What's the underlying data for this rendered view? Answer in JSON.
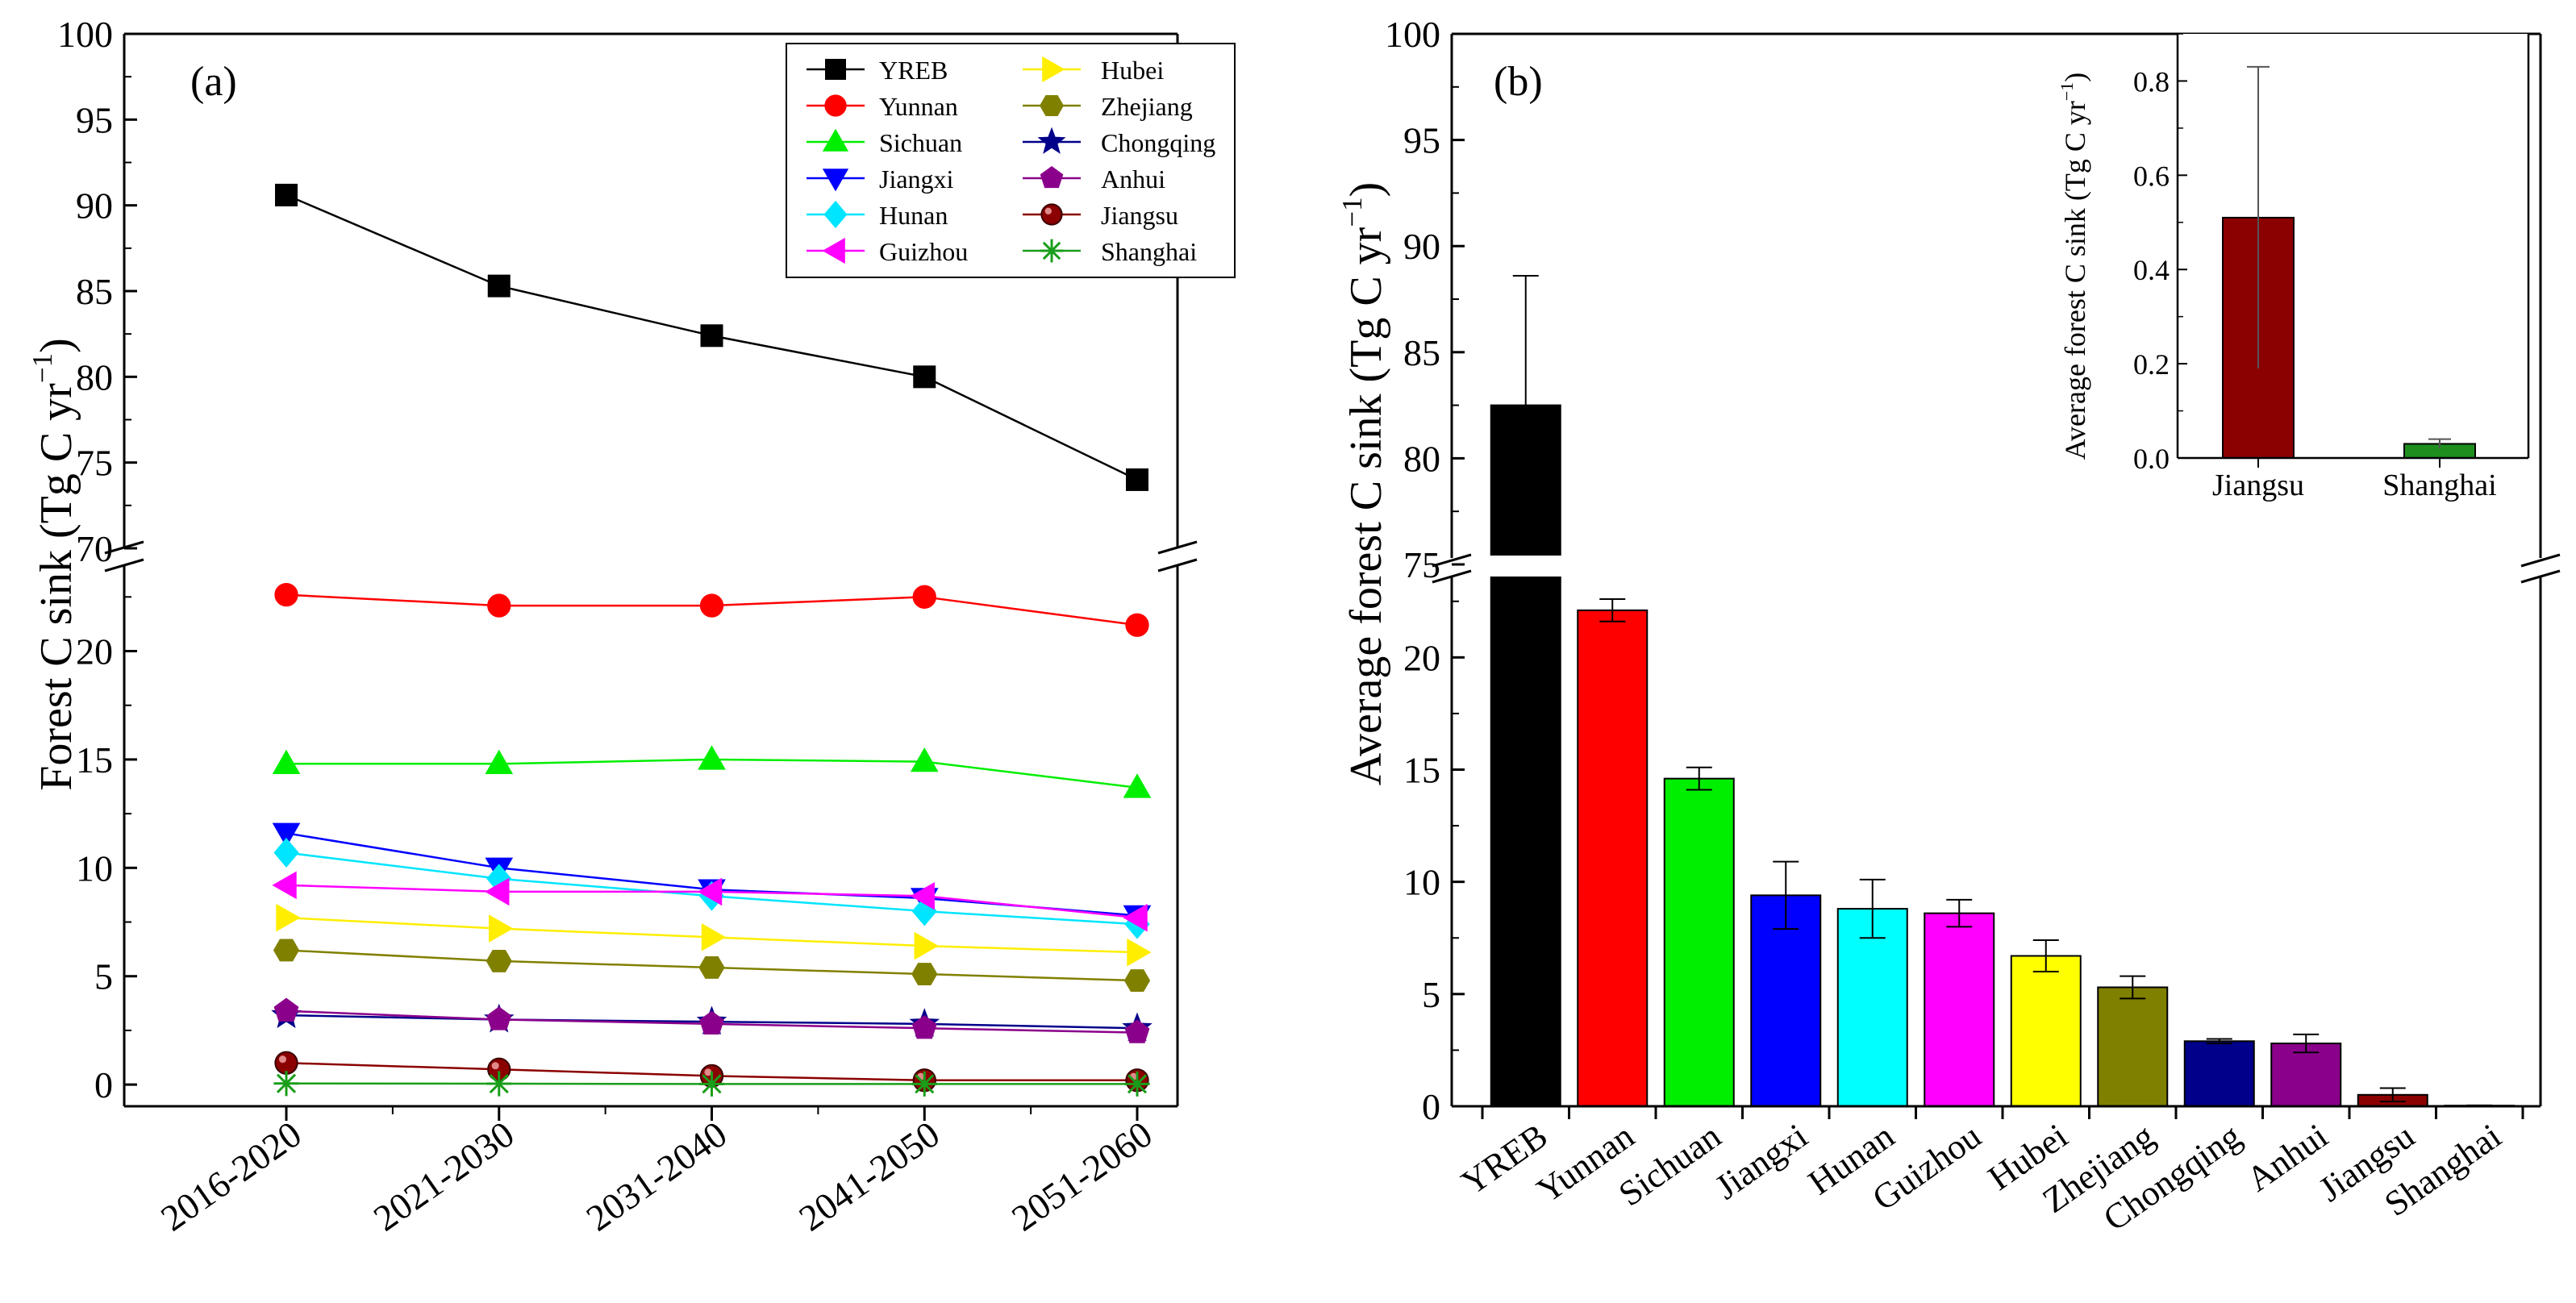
{
  "chart_data": [
    {
      "panel": "(a)",
      "type": "line",
      "ylabel": "Forest C sink (Tg C yr",
      "ylabel_sup": "−1",
      "ylabel_close": ")",
      "x": [
        "2016-2020",
        "2021-2030",
        "2031-2040",
        "2041-2050",
        "2051-2060"
      ],
      "y_lower_range": [
        -1,
        24
      ],
      "y_lower_ticks": [
        "0",
        "5",
        "10",
        "15",
        "20"
      ],
      "y_upper_range": [
        70,
        100
      ],
      "y_upper_ticks": [
        "70",
        "75",
        "80",
        "85",
        "90",
        "95",
        "100"
      ],
      "grid": false,
      "legend_position": "top-right",
      "series": [
        {
          "name": "YREB",
          "color": "#000000",
          "marker": "square",
          "values": [
            90.6,
            85.3,
            82.4,
            80.0,
            74.0
          ]
        },
        {
          "name": "Yunnan",
          "color": "#ff0000",
          "marker": "circle",
          "values": [
            22.6,
            22.1,
            22.1,
            22.5,
            21.2
          ]
        },
        {
          "name": "Sichuan",
          "color": "#00ee00",
          "marker": "triangle-up",
          "values": [
            14.8,
            14.8,
            15.0,
            14.9,
            13.7
          ]
        },
        {
          "name": "Jiangxi",
          "color": "#0000ff",
          "marker": "triangle-down",
          "values": [
            11.6,
            10.0,
            9.0,
            8.6,
            7.8
          ]
        },
        {
          "name": "Hunan",
          "color": "#00e5ff",
          "marker": "diamond",
          "values": [
            10.7,
            9.5,
            8.7,
            8.0,
            7.4
          ]
        },
        {
          "name": "Guizhou",
          "color": "#ff00ff",
          "marker": "triangle-left",
          "values": [
            9.2,
            8.9,
            8.9,
            8.7,
            7.7
          ]
        },
        {
          "name": "Hubei",
          "color": "#ffee00",
          "marker": "triangle-right",
          "values": [
            7.7,
            7.2,
            6.8,
            6.4,
            6.1
          ]
        },
        {
          "name": "Zhejiang",
          "color": "#808000",
          "marker": "hexagon",
          "values": [
            6.2,
            5.7,
            5.4,
            5.1,
            4.8
          ]
        },
        {
          "name": "Chongqing",
          "color": "#00008b",
          "marker": "star",
          "values": [
            3.2,
            3.0,
            2.9,
            2.8,
            2.6
          ]
        },
        {
          "name": "Anhui",
          "color": "#8b008b",
          "marker": "pentagon",
          "values": [
            3.4,
            3.0,
            2.8,
            2.6,
            2.4
          ]
        },
        {
          "name": "Jiangsu",
          "color": "#8b0000",
          "marker": "sphere",
          "values": [
            1.0,
            0.7,
            0.4,
            0.2,
            0.2
          ]
        },
        {
          "name": "Shanghai",
          "color": "#1a9e1a",
          "marker": "asterisk",
          "values": [
            0.05,
            0.04,
            0.03,
            0.03,
            0.03
          ]
        }
      ]
    },
    {
      "panel": "(b)",
      "type": "bar",
      "ylabel": "Average forest C sink (Tg C yr",
      "ylabel_sup": "−1",
      "ylabel_close": ")",
      "categories": [
        "YREB",
        "Yunnan",
        "Sichuan",
        "Jiangxi",
        "Hunan",
        "Guizhou",
        "Hubei",
        "Zhejiang",
        "Chongqing",
        "Anhui",
        "Jiangsu",
        "Shanghai"
      ],
      "values": [
        82.5,
        22.1,
        14.6,
        9.4,
        8.8,
        8.6,
        6.7,
        5.3,
        2.9,
        2.8,
        0.51,
        0.03
      ],
      "errors": [
        6.1,
        0.5,
        0.5,
        1.5,
        1.3,
        0.6,
        0.7,
        0.5,
        0.1,
        0.4,
        0.3,
        0.01
      ],
      "colors": [
        "#000000",
        "#ff0000",
        "#00ee00",
        "#0000ff",
        "#00ffff",
        "#ff00ff",
        "#ffff00",
        "#808000",
        "#00008b",
        "#8b008b",
        "#8b0000",
        "#1e8f1e"
      ],
      "y_lower_range": [
        0,
        24
      ],
      "y_lower_ticks": [
        "0",
        "5",
        "10",
        "15",
        "20"
      ],
      "y_upper_range": [
        75,
        100
      ],
      "y_upper_ticks": [
        "75",
        "80",
        "85",
        "90",
        "95",
        "100"
      ],
      "inset": {
        "type": "bar",
        "ylabel": "Average forest C sink (Tg C yr",
        "ylabel_sup": "−1",
        "ylabel_close": ")",
        "categories": [
          "Jiangsu",
          "Shanghai"
        ],
        "values": [
          0.51,
          0.03
        ],
        "errors": [
          0.32,
          0.01
        ],
        "colors": [
          "#8b0000",
          "#1e8f1e"
        ],
        "ylim": [
          0,
          0.9
        ],
        "yticks": [
          "0.0",
          "0.2",
          "0.4",
          "0.6",
          "0.8"
        ]
      }
    }
  ]
}
